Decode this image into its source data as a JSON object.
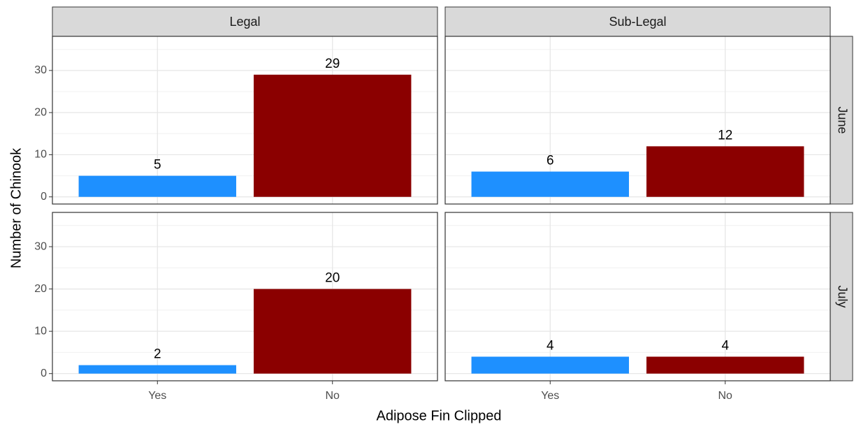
{
  "chart_data": {
    "type": "bar",
    "x_label": "Adipose Fin Clipped",
    "y_label": "Number of Chinook",
    "col_facets": [
      "Legal",
      "Sub-Legal"
    ],
    "row_facets": [
      "June",
      "July"
    ],
    "categories": [
      "Yes",
      "No"
    ],
    "colors": [
      "#1e90ff",
      "#8b0000"
    ],
    "panels": [
      {
        "values": [
          5,
          29
        ]
      },
      {
        "values": [
          6,
          12
        ]
      },
      {
        "values": [
          2,
          20
        ]
      },
      {
        "values": [
          4,
          4
        ]
      }
    ],
    "ylim": [
      -1.7,
      38.1
    ],
    "yticks": [
      0,
      10,
      20,
      30
    ],
    "minor_yticks": [
      5,
      15,
      25,
      35
    ],
    "grid": true
  }
}
